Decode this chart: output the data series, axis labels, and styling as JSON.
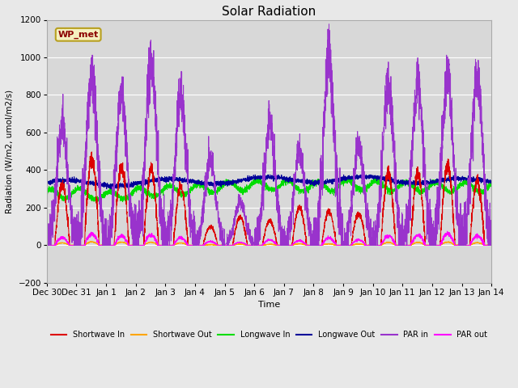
{
  "title": "Solar Radiation",
  "xlabel": "Time",
  "ylabel": "Radiation (W/m2, umol/m2/s)",
  "ylim": [
    -200,
    1200
  ],
  "yticks": [
    -200,
    0,
    200,
    400,
    600,
    800,
    1000,
    1200
  ],
  "bg_color": "#e8e8e8",
  "plot_bg_color": "#d8d8d8",
  "annotation_text": "WP_met",
  "annotation_color": "#8b0000",
  "annotation_bg": "#f5f0c0",
  "annotation_border": "#b8a020",
  "x_tick_labels": [
    "Dec 30",
    "Dec 31",
    "Jan 1",
    "Jan 2",
    "Jan 3",
    "Jan 4",
    "Jan 5",
    "Jan 6",
    "Jan 7",
    "Jan 8",
    "Jan 9",
    "Jan 10",
    "Jan 11",
    "Jan 12",
    "Jan 13",
    "Jan 14"
  ],
  "legend_entries": [
    {
      "label": "Shortwave In",
      "color": "#dd0000"
    },
    {
      "label": "Shortwave Out",
      "color": "#ffa500"
    },
    {
      "label": "Longwave In",
      "color": "#00dd00"
    },
    {
      "label": "Longwave Out",
      "color": "#000099"
    },
    {
      "label": "PAR in",
      "color": "#9933cc"
    },
    {
      "label": "PAR out",
      "color": "#ff00ff"
    }
  ],
  "num_days": 15,
  "seed": 42
}
